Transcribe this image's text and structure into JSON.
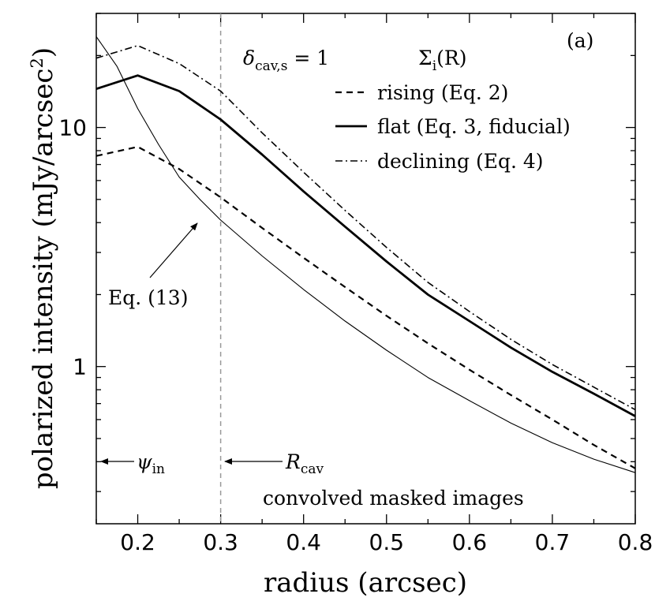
{
  "chart_data": {
    "type": "line",
    "panel_label": "(a)",
    "xlabel": "radius (arcsec)",
    "ylabel_prefix": "polarized intensity (mJy/arcsec",
    "ylabel_sup": "2",
    "ylabel_suffix": ")",
    "xlim": [
      0.15,
      0.8
    ],
    "ylim": [
      0.22,
      30
    ],
    "yscale": "log",
    "xticks": [
      0.2,
      0.3,
      0.4,
      0.5,
      0.6,
      0.7,
      0.8
    ],
    "xtick_labels": [
      "0.2",
      "0.3",
      "0.4",
      "0.5",
      "0.6",
      "0.7",
      "0.8"
    ],
    "yticks": [
      1,
      10
    ],
    "ytick_labels": [
      "1",
      "10"
    ],
    "legend_title": {
      "base": "Σ",
      "sub": "i",
      "rest": "(R)"
    },
    "param_label": {
      "base": "δ",
      "sub": "cav,s",
      "rest": " = 1"
    },
    "series": [
      {
        "name": "rising (Eq. 2)",
        "style": "dashed",
        "x": [
          0.15,
          0.2,
          0.25,
          0.3,
          0.35,
          0.4,
          0.45,
          0.5,
          0.55,
          0.6,
          0.65,
          0.7,
          0.75,
          0.8
        ],
        "y": [
          7.6,
          8.3,
          6.7,
          5.1,
          3.8,
          2.85,
          2.15,
          1.63,
          1.25,
          0.97,
          0.76,
          0.6,
          0.47,
          0.375
        ]
      },
      {
        "name": "flat (Eq. 3, fiducial)",
        "style": "solid-thick",
        "x": [
          0.15,
          0.2,
          0.25,
          0.3,
          0.35,
          0.4,
          0.45,
          0.5,
          0.55,
          0.6,
          0.65,
          0.7,
          0.75,
          0.8
        ],
        "y": [
          14.5,
          16.5,
          14.2,
          10.8,
          7.7,
          5.4,
          3.85,
          2.75,
          2.0,
          1.55,
          1.2,
          0.95,
          0.77,
          0.62
        ]
      },
      {
        "name": "declining (Eq. 4)",
        "style": "dashdot",
        "x": [
          0.15,
          0.2,
          0.25,
          0.3,
          0.35,
          0.4,
          0.45,
          0.5,
          0.55,
          0.6,
          0.65,
          0.7,
          0.75,
          0.8
        ],
        "y": [
          19.5,
          22.0,
          18.5,
          14.2,
          9.5,
          6.5,
          4.5,
          3.15,
          2.25,
          1.7,
          1.3,
          1.02,
          0.82,
          0.66
        ]
      },
      {
        "name": "Eq. (13)",
        "style": "solid-thin",
        "x": [
          0.15,
          0.175,
          0.2,
          0.225,
          0.25,
          0.275,
          0.3,
          0.35,
          0.4,
          0.45,
          0.5,
          0.55,
          0.6,
          0.65,
          0.7,
          0.75,
          0.8
        ],
        "y": [
          24.0,
          18.0,
          12.0,
          8.5,
          6.2,
          5.0,
          4.1,
          2.9,
          2.1,
          1.55,
          1.17,
          0.9,
          0.72,
          0.58,
          0.48,
          0.41,
          0.36
        ]
      }
    ],
    "annotations": {
      "eq13_label": "Eq. (13)",
      "r_cav_base": "R",
      "r_cav_sub": "cav",
      "r_cav_x": 0.3,
      "psi_in_base": "ψ",
      "psi_in_sub": "in",
      "footer": "convolved masked images"
    }
  }
}
